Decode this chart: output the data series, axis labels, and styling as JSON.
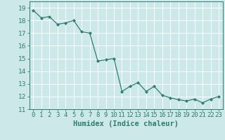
{
  "x": [
    0,
    1,
    2,
    3,
    4,
    5,
    6,
    7,
    8,
    9,
    10,
    11,
    12,
    13,
    14,
    15,
    16,
    17,
    18,
    19,
    20,
    21,
    22,
    23
  ],
  "y": [
    18.8,
    18.2,
    18.3,
    17.7,
    17.8,
    18.0,
    17.1,
    17.0,
    14.8,
    14.9,
    15.0,
    12.4,
    12.8,
    13.1,
    12.4,
    12.8,
    12.1,
    11.9,
    11.75,
    11.65,
    11.8,
    11.5,
    11.8,
    12.0
  ],
  "line_color": "#2e7d6e",
  "marker": "D",
  "marker_size": 2,
  "bg_color": "#cde8e8",
  "grid_color": "#ffffff",
  "xlabel": "Humidex (Indice chaleur)",
  "xlim": [
    -0.5,
    23.5
  ],
  "ylim": [
    11,
    19.5
  ],
  "yticks": [
    11,
    12,
    13,
    14,
    15,
    16,
    17,
    18,
    19
  ],
  "xtick_labels": [
    "0",
    "1",
    "2",
    "3",
    "4",
    "5",
    "6",
    "7",
    "8",
    "9",
    "10",
    "11",
    "12",
    "13",
    "14",
    "15",
    "16",
    "17",
    "18",
    "19",
    "20",
    "21",
    "22",
    "23"
  ],
  "tick_fontsize": 6.5,
  "xlabel_fontsize": 7.5
}
